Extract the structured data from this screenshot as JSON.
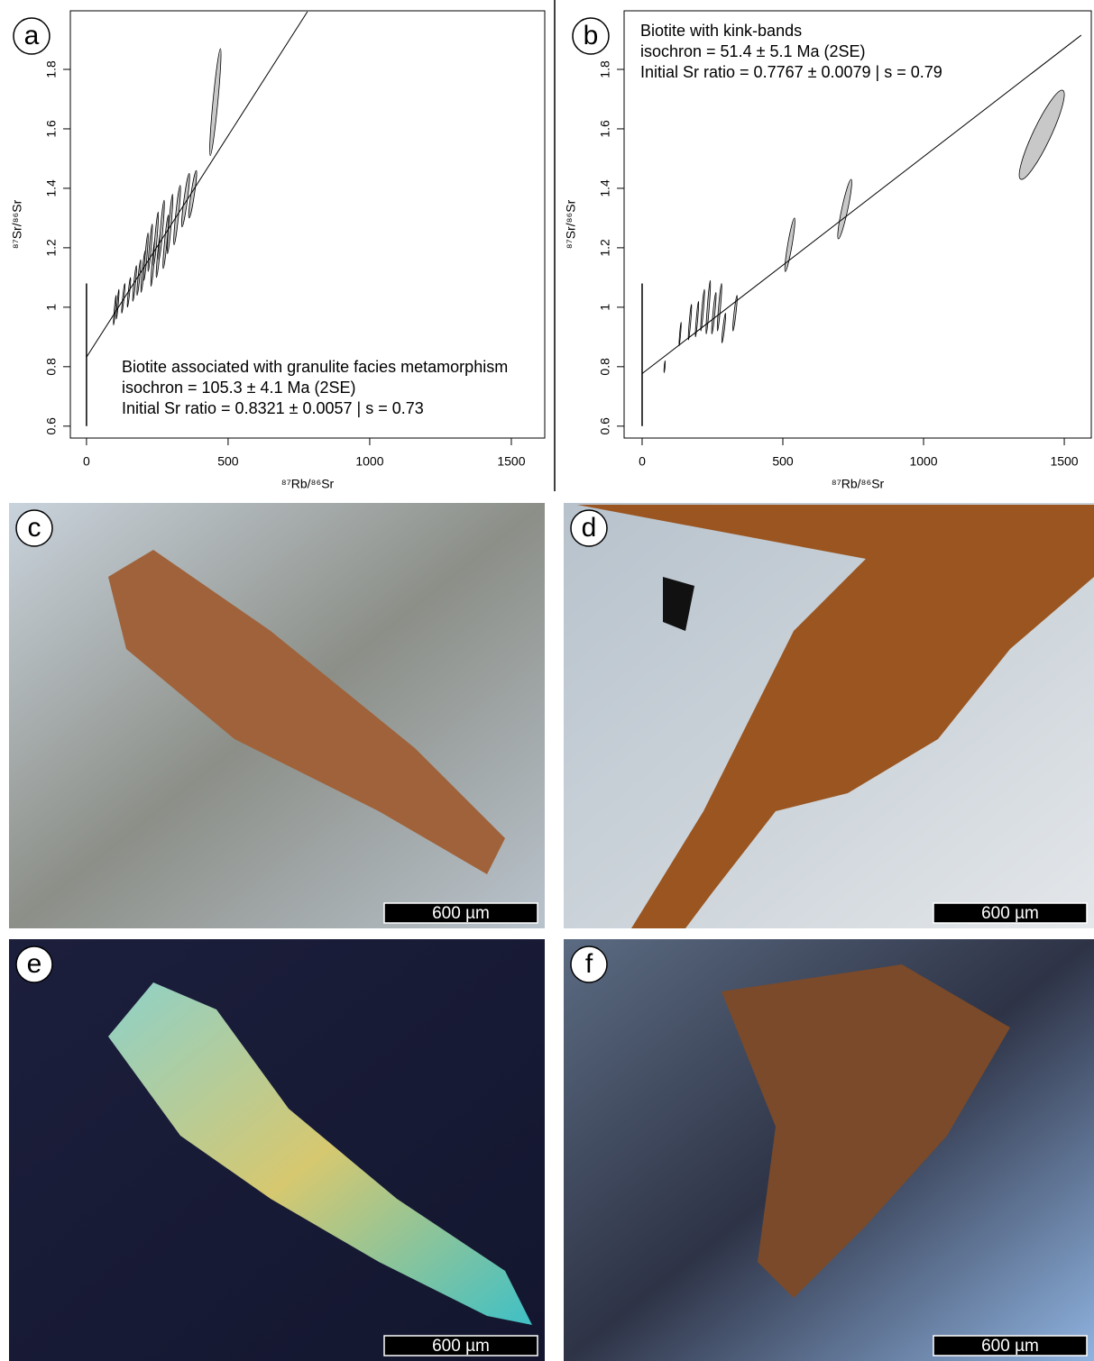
{
  "chart_data": [
    {
      "type": "scatter",
      "panel_label": "a",
      "annotations": [
        "Biotite associated with granulite facies metamorphism",
        "isochron = 105.3 ± 4.1 Ma (2SE)",
        "Initial Sr ratio = 0.8321 ± 0.0057 | s = 0.73"
      ],
      "x_label": "⁸⁷Rb/⁸⁶Sr",
      "y_label": "⁸⁷Sr/⁸⁶Sr",
      "xlim": [
        -57,
        1618
      ],
      "ylim": [
        0.56,
        1.997
      ],
      "xticks": [
        0,
        500,
        1000,
        1500
      ],
      "yticks": [
        0.6,
        0.8,
        1.0,
        1.2,
        1.4,
        1.6,
        1.8
      ],
      "x": [
        100,
        110,
        130,
        150,
        170,
        185,
        200,
        210,
        225,
        235,
        245,
        255,
        265,
        280,
        295,
        320,
        350,
        375,
        455
      ],
      "y": [
        0.99,
        1.01,
        1.03,
        1.05,
        1.08,
        1.1,
        1.12,
        1.17,
        1.2,
        1.15,
        1.23,
        1.18,
        1.26,
        1.22,
        1.28,
        1.31,
        1.36,
        1.38,
        1.69
      ],
      "x_errors": [
        5,
        5,
        6,
        6,
        7,
        7,
        8,
        8,
        8,
        8,
        9,
        9,
        10,
        10,
        10,
        12,
        14,
        14,
        20
      ],
      "y_errors": [
        0.05,
        0.05,
        0.05,
        0.05,
        0.06,
        0.06,
        0.07,
        0.08,
        0.08,
        0.08,
        0.09,
        0.08,
        0.1,
        0.09,
        0.1,
        0.1,
        0.09,
        0.08,
        0.18
      ],
      "color": "#c8c8c8",
      "fit_line": {
        "x": [
          0,
          780
        ],
        "y": [
          0.8321,
          1.994
        ]
      },
      "intercept_bar": {
        "x": 0,
        "y": [
          0.6,
          1.08
        ]
      }
    },
    {
      "type": "scatter",
      "panel_label": "b",
      "annotations": [
        "Biotite with kink-bands",
        "isochron = 51.4 ± 5.1 Ma (2SE)",
        "Initial Sr ratio = 0.7767 ± 0.0079 | s = 0.79"
      ],
      "x_label": "⁸⁷Rb/⁸⁶Sr",
      "y_label": "⁸⁷Sr/⁸⁶Sr",
      "xlim": [
        -64,
        1596
      ],
      "ylim": [
        0.56,
        1.997
      ],
      "xticks": [
        0,
        500,
        1000,
        1500
      ],
      "yticks": [
        0.6,
        0.8,
        1.0,
        1.2,
        1.4,
        1.6,
        1.8
      ],
      "x": [
        80,
        135,
        170,
        195,
        215,
        235,
        255,
        275,
        290,
        330,
        525,
        720,
        1420
      ],
      "y": [
        0.8,
        0.91,
        0.95,
        0.96,
        0.99,
        1.0,
        0.98,
        1.0,
        0.93,
        0.98,
        1.21,
        1.33,
        1.58
      ],
      "x_errors": [
        2,
        4,
        6,
        6,
        7,
        8,
        8,
        8,
        7,
        8,
        18,
        25,
        80
      ],
      "y_errors": [
        0.02,
        0.04,
        0.06,
        0.06,
        0.07,
        0.09,
        0.07,
        0.08,
        0.05,
        0.06,
        0.09,
        0.1,
        0.15
      ],
      "color": "#c8c8c8",
      "fit_line": {
        "x": [
          0,
          1560
        ],
        "y": [
          0.7767,
          1.915
        ]
      },
      "intercept_bar": {
        "x": 0,
        "y": [
          0.6,
          1.08
        ]
      }
    }
  ],
  "panels": [
    {
      "label": "c",
      "scale_bar": "600 µm"
    },
    {
      "label": "d",
      "scale_bar": "600 µm"
    },
    {
      "label": "e",
      "scale_bar": "600 µm"
    },
    {
      "label": "f",
      "scale_bar": "600 µm"
    }
  ]
}
